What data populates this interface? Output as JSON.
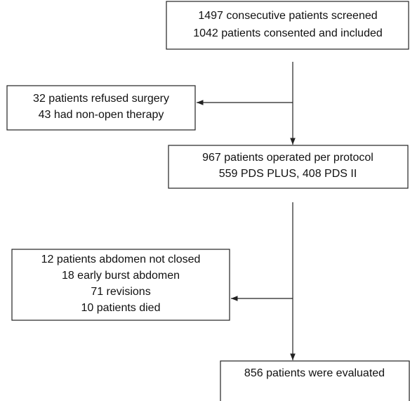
{
  "nodes": [
    {
      "lines": [
        "1497 consecutive patients screened",
        "1042 patients consented and included"
      ]
    },
    {
      "lines": [
        "32 patients refused surgery",
        "43 had non-open therapy"
      ]
    },
    {
      "lines": [
        "967 patients operated per protocol",
        "559 PDS PLUS, 408 PDS II"
      ]
    },
    {
      "lines": [
        "12 patients abdomen not closed",
        "18 early burst abdomen",
        "71 revisions",
        "10 patients died"
      ]
    },
    {
      "lines": [
        "856 patients were evaluated"
      ]
    }
  ]
}
